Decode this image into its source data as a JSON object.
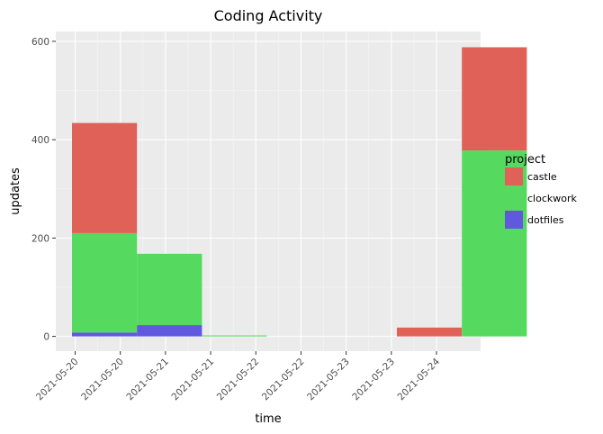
{
  "chart_data": {
    "type": "bar",
    "stacked": true,
    "title": "Coding Activity",
    "xlabel": "time",
    "ylabel": "updates",
    "x_ticks": [
      "2021-05-20",
      "2021-05-20",
      "2021-05-21",
      "2021-05-21",
      "2021-05-22",
      "2021-05-22",
      "2021-05-23",
      "2021-05-23",
      "2021-05-24"
    ],
    "y_ticks": [
      0,
      200,
      400,
      600
    ],
    "ylim": [
      -30,
      620
    ],
    "bins": [
      "bin 1",
      "bin 2",
      "bin 3",
      "bin 4",
      "bin 5",
      "bin 6",
      "bin 7"
    ],
    "series": [
      {
        "name": "dotfiles",
        "color": "#6158e0",
        "values": [
          8,
          23,
          0,
          0,
          0,
          0,
          0
        ]
      },
      {
        "name": "clockwork",
        "color": "#55da5f",
        "values": [
          202,
          145,
          2,
          0,
          0,
          0,
          378
        ]
      },
      {
        "name": "castle",
        "color": "#e06158",
        "values": [
          224,
          0,
          0,
          0,
          0,
          18,
          210
        ]
      }
    ],
    "legend": {
      "title": "project",
      "position": "right"
    },
    "grid": true,
    "background": "#ebebeb"
  }
}
